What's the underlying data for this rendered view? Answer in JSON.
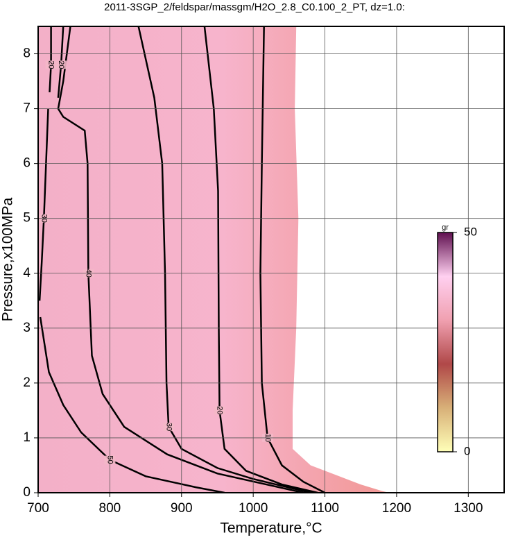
{
  "chart_data": {
    "type": "contour",
    "title": "2011-3SGP_2/feldspar/massgm/H2O_2.8_C0.100_2_PT, dz=1.0:",
    "xlabel": "Temperature,°C",
    "ylabel": "Pressure,x100MPa",
    "xlim": [
      700,
      1350
    ],
    "ylim": [
      0,
      8.5
    ],
    "xticks": [
      700,
      800,
      900,
      1000,
      1100,
      1200,
      1300
    ],
    "yticks": [
      0,
      1,
      2,
      3,
      4,
      5,
      6,
      7,
      8
    ],
    "grid": true,
    "contours": [
      {
        "level": 0,
        "x": [
          700,
          1060,
          1058,
          1063,
          1060,
          1055,
          1055,
          1080,
          1120,
          1150,
          1180,
          1190
        ],
        "y": [
          8.5,
          8.5,
          7,
          5,
          3,
          1.5,
          0.8,
          0.5,
          0.3,
          0.15,
          0.03,
          0
        ]
      },
      {
        "level": 10,
        "x": [
          1015,
          1012,
          1010,
          1012,
          1020,
          1040,
          1070,
          1100
        ],
        "y": [
          8.5,
          6,
          4,
          2,
          1,
          0.5,
          0.2,
          0
        ]
      },
      {
        "level": 20,
        "x": [
          932,
          945,
          951,
          952,
          953,
          960,
          990,
          1040,
          1090
        ],
        "y": [
          8.5,
          7,
          5.5,
          3,
          1.5,
          0.8,
          0.4,
          0.15,
          0
        ]
      },
      {
        "level": 30,
        "x": [
          840,
          862,
          873,
          877,
          879,
          882,
          900,
          950,
          1000,
          1080
        ],
        "y": [
          8.5,
          7.2,
          6,
          4,
          2,
          1.2,
          0.8,
          0.45,
          0.25,
          0
        ]
      },
      {
        "level": 40,
        "x": [
          745,
          735,
          728,
          735,
          765,
          769,
          770,
          775,
          790,
          820,
          880,
          950,
          1070
        ],
        "y": [
          8.5,
          7.5,
          7,
          6.85,
          6.6,
          6,
          4,
          2.5,
          1.8,
          1.2,
          0.7,
          0.35,
          0
        ]
      },
      {
        "level": 30,
        "x": [
          714,
          711,
          708,
          705,
          702
        ],
        "y": [
          7,
          6,
          5,
          4.2,
          3.5
        ]
      },
      {
        "level": 50,
        "x": [
          703,
          715,
          735,
          760,
          800,
          850,
          920,
          960
        ],
        "y": [
          3.2,
          2.2,
          1.6,
          1.1,
          0.6,
          0.3,
          0.1,
          0
        ]
      },
      {
        "level": 20,
        "x": [
          718,
          718,
          716
        ],
        "y": [
          8.5,
          7.8,
          7.3
        ]
      },
      {
        "level": 20,
        "x": [
          735,
          732,
          728
        ],
        "y": [
          8.5,
          7.8,
          7.2
        ]
      }
    ],
    "colorbar": {
      "label": "gr",
      "lim": [
        0,
        50
      ],
      "ticks": [
        0,
        50
      ],
      "colors": [
        "#ffffb8",
        "#d8b078",
        "#b04848",
        "#f0a0b0",
        "#ffd0f0",
        "#601050"
      ]
    }
  }
}
